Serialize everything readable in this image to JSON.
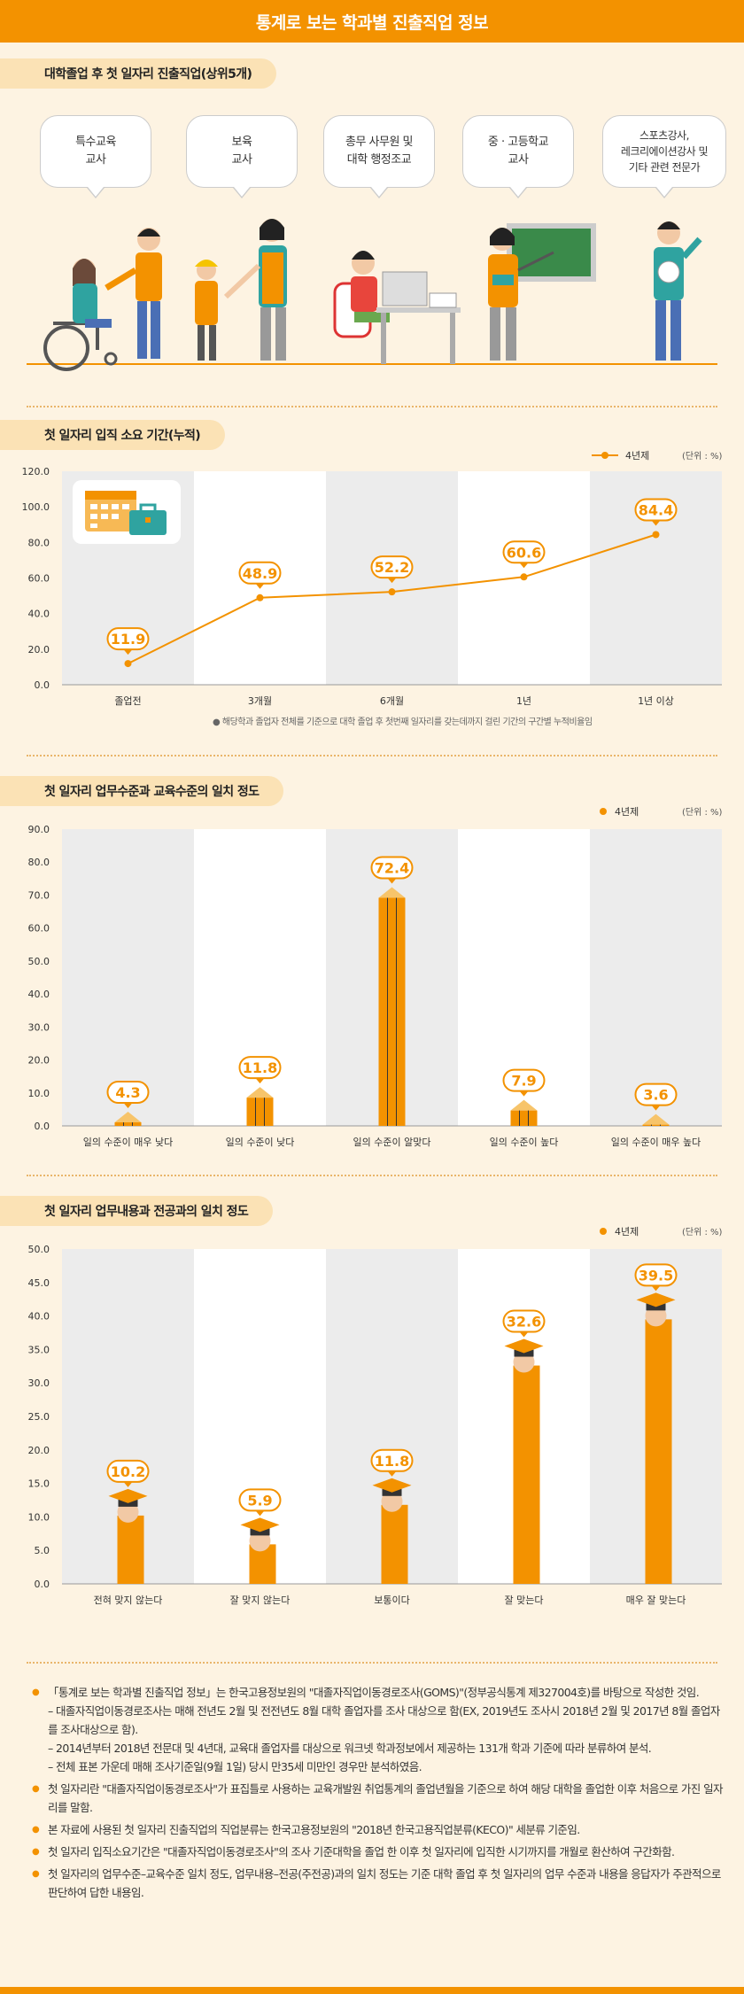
{
  "title": "통계로 보는 학과별 진출직업 정보",
  "section1": {
    "title": "대학졸업 후 첫 일자리 진출직업(상위5개)",
    "jobs": [
      {
        "line1": "특수교육",
        "line2": "교사",
        "line3": ""
      },
      {
        "line1": "보육",
        "line2": "교사",
        "line3": ""
      },
      {
        "line1": "총무 사무원 및",
        "line2": "대학 행정조교",
        "line3": ""
      },
      {
        "line1": "중 · 고등학교",
        "line2": "교사",
        "line3": ""
      },
      {
        "line1": "스포츠강사,",
        "line2": "레크리에이션강사 및",
        "line3": "기타 관련 전문가"
      }
    ]
  },
  "section2": {
    "title": "첫 일자리 입직 소요 기간(누적)",
    "legend": "4년제",
    "unit": "(단위 : %)",
    "note": "해당학과 졸업자 전체를 기준으로 대학 졸업 후 첫번째 일자리를 갖는데까지 걸린 기간의 구간별 누적비율임",
    "icon": "calendar-briefcase-icon",
    "chart_data": {
      "type": "line",
      "categories": [
        "졸업전",
        "3개월",
        "6개월",
        "1년",
        "1년 이상"
      ],
      "series": [
        {
          "name": "4년제",
          "values": [
            11.9,
            48.9,
            52.2,
            60.6,
            84.4
          ]
        }
      ],
      "yticks": [
        "120.0",
        "100.0",
        "80.0",
        "60.0",
        "40.0",
        "20.0",
        "0.0"
      ],
      "ylim": [
        0,
        120
      ],
      "grid": "alternating-column-bands",
      "legend": "top-right",
      "color": "#f39200"
    }
  },
  "section3": {
    "title": "첫 일자리 업무수준과 교육수준의 일치 정도",
    "legend": "4년제",
    "unit": "(단위 : %)",
    "chart_data": {
      "type": "bar",
      "categories": [
        "일의 수준이 매우 낮다",
        "일의 수준이 낮다",
        "일의 수준이 알맞다",
        "일의 수준이 높다",
        "일의 수준이 매우 높다"
      ],
      "series": [
        {
          "name": "4년제",
          "values": [
            4.3,
            11.8,
            72.4,
            7.9,
            3.6
          ]
        }
      ],
      "yticks": [
        "90.0",
        "80.0",
        "70.0",
        "60.0",
        "50.0",
        "40.0",
        "30.0",
        "20.0",
        "10.0",
        "0.0"
      ],
      "ylim": [
        0,
        90
      ],
      "grid": "alternating-column-bands",
      "legend": "top-right",
      "color": "#f39200",
      "bar_style": "pencil"
    }
  },
  "section4": {
    "title": "첫 일자리 업무내용과 전공과의 일치 정도",
    "legend": "4년제",
    "unit": "(단위 : %)",
    "chart_data": {
      "type": "bar",
      "categories": [
        "전혀 맞지 않는다",
        "잘 맞지 않는다",
        "보통이다",
        "잘 맞는다",
        "매우 잘 맞는다"
      ],
      "series": [
        {
          "name": "4년제",
          "values": [
            10.2,
            5.9,
            11.8,
            32.6,
            39.5
          ]
        }
      ],
      "yticks": [
        "50.0",
        "45.0",
        "40.0",
        "35.0",
        "30.0",
        "25.0",
        "20.0",
        "15.0",
        "10.0",
        "5.0",
        "0.0"
      ],
      "ylim": [
        0,
        50
      ],
      "grid": "alternating-column-bands",
      "legend": "top-right",
      "color": "#f39200",
      "bar_style": "graduate"
    }
  },
  "footer": {
    "b1": "「통계로 보는 학과별 진출직업 정보」는 한국고용정보원의 \"대졸자직업이동경로조사(GOMS)\"(정부공식통계 제327004호)를 바탕으로 작성한 것임.",
    "b1s1": "– 대졸자직업이동경로조사는 매해 전년도 2월 및 전전년도 8월 대학 졸업자를 조사 대상으로 함(EX, 2019년도 조사시 2018년 2월 및 2017년 8월 졸업자를 조사대상으로 함).",
    "b1s2": "– 2014년부터 2018년 전문대 및 4년대, 교육대 졸업자를 대상으로 워크넷 학과정보에서 제공하는 131개 학과 기준에 따라 분류하여 분석.",
    "b1s3": "– 전체 표본 가운데 매해 조사기준일(9월 1일) 당시 만35세 미만인 경우만 분석하였음.",
    "b2": "첫 일자리란 \"대졸자직업이동경로조사\"가 표집틀로 사용하는 교육개발원 취업통계의 졸업년월을 기준으로 하여 해당 대학을 졸업한 이후 처음으로 가진 일자리를 말함.",
    "b3": "본 자료에 사용된 첫 일자리 진출직업의 직업분류는 한국고용정보원의 \"2018년 한국고용직업분류(KECO)\" 세분류 기준임.",
    "b4": "첫 일자리 입직소요기간은 \"대졸자직업이동경로조사\"의 조사 기준대학을 졸업 한 이후 첫 일자리에 입직한 시기까지를 개월로 환산하여 구간화함.",
    "b5": "첫 일자리의 업무수준–교육수준 일치 정도, 업무내용–전공(주전공)과의 일치 정도는 기준 대학 졸업 후 첫 일자리의 업무 수준과 내용을 응답자가 주관적으로 판단하여 답한 내용임."
  }
}
